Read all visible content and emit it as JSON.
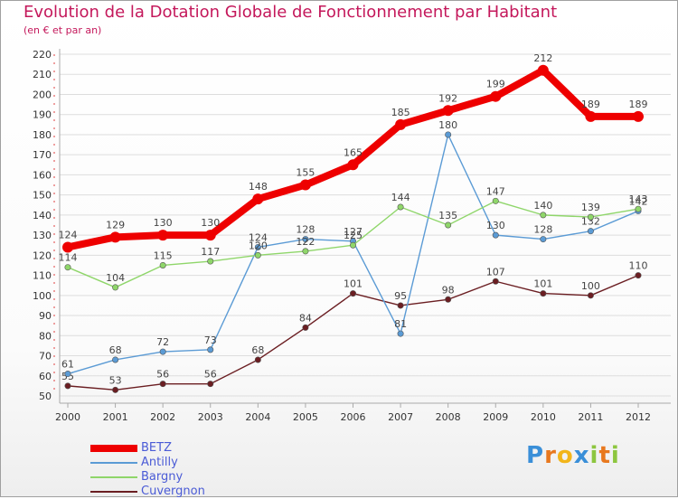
{
  "chart_data": {
    "type": "line",
    "title": "Evolution de la Dotation Globale de Fonctionnement par Habitant",
    "subtitle": "(en € et par an)",
    "x": [
      "2000",
      "2001",
      "2002",
      "2003",
      "2004",
      "2005",
      "2006",
      "2007",
      "2008",
      "2009",
      "2010",
      "2011",
      "2012"
    ],
    "ylim": [
      50,
      220
    ],
    "yticks": [
      50,
      60,
      70,
      80,
      90,
      100,
      110,
      120,
      130,
      140,
      150,
      160,
      170,
      180,
      190,
      200,
      210,
      220
    ],
    "series": [
      {
        "name": "Cuvergnon",
        "color": "#6b1e22",
        "values": [
          55,
          53,
          56,
          56,
          68,
          84,
          101,
          95,
          98,
          107,
          101,
          100,
          110
        ]
      },
      {
        "name": "Antilly",
        "color": "#5b9bd5",
        "values": [
          61,
          68,
          72,
          73,
          124,
          128,
          127,
          81,
          180,
          130,
          128,
          132,
          142
        ]
      },
      {
        "name": "Bargny",
        "color": "#8fd66a",
        "values": [
          114,
          104,
          115,
          117,
          120,
          122,
          125,
          144,
          135,
          147,
          140,
          139,
          143
        ]
      },
      {
        "name": "BETZ",
        "color": "#ee0000",
        "values": [
          124,
          129,
          130,
          130,
          148,
          155,
          165,
          185,
          192,
          199,
          212,
          189,
          189
        ]
      }
    ],
    "legend": [
      "BETZ",
      "Antilly",
      "Bargny",
      "Cuvergnon"
    ],
    "legend_position": "bottom-left"
  },
  "logo": {
    "letters": [
      "P",
      "r",
      "o",
      "x",
      "i",
      "t",
      "i"
    ],
    "colors": [
      "#3a8fd8",
      "#e8781e",
      "#f2b51a",
      "#3a8fd8",
      "#8dc63f",
      "#e8781e",
      "#8dc63f"
    ]
  }
}
